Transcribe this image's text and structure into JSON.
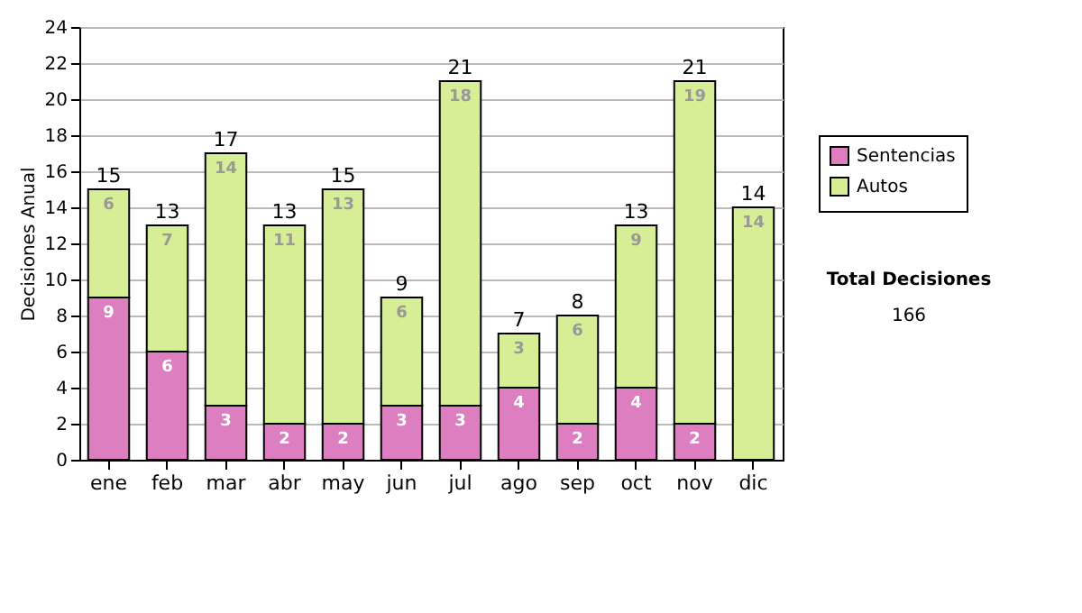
{
  "chart_data": {
    "type": "bar",
    "stacked": true,
    "ylabel": "Decisiones Anual",
    "categories": [
      "ene",
      "feb",
      "mar",
      "abr",
      "may",
      "jun",
      "jul",
      "ago",
      "sep",
      "oct",
      "nov",
      "dic"
    ],
    "series": [
      {
        "name": "Sentencias",
        "color": "#dc7ec0",
        "values": [
          9,
          6,
          3,
          2,
          2,
          3,
          3,
          4,
          2,
          4,
          2,
          0
        ],
        "value_labels": [
          "9",
          "6",
          "3",
          "2",
          "2",
          "3",
          "3",
          "4",
          "2",
          "4",
          "2",
          null
        ]
      },
      {
        "name": "Autos",
        "color": "#d6ee96",
        "values": [
          6,
          7,
          14,
          11,
          13,
          6,
          18,
          3,
          6,
          9,
          19,
          14
        ],
        "value_labels": [
          "6",
          "7",
          "14",
          "11",
          "13",
          "6",
          "18",
          "3",
          "6",
          "9",
          "19",
          "14"
        ]
      }
    ],
    "totals": [
      "15",
      "13",
      "17",
      "13",
      "15",
      "9",
      "21",
      "7",
      "8",
      "13",
      "21",
      "14"
    ],
    "ylim": [
      0,
      24
    ],
    "yticks": [
      0,
      2,
      4,
      6,
      8,
      10,
      12,
      14,
      16,
      18,
      20,
      22,
      24
    ],
    "grid": "y",
    "legend": "right",
    "annotations": [
      "Total Decisiones",
      "166"
    ]
  }
}
